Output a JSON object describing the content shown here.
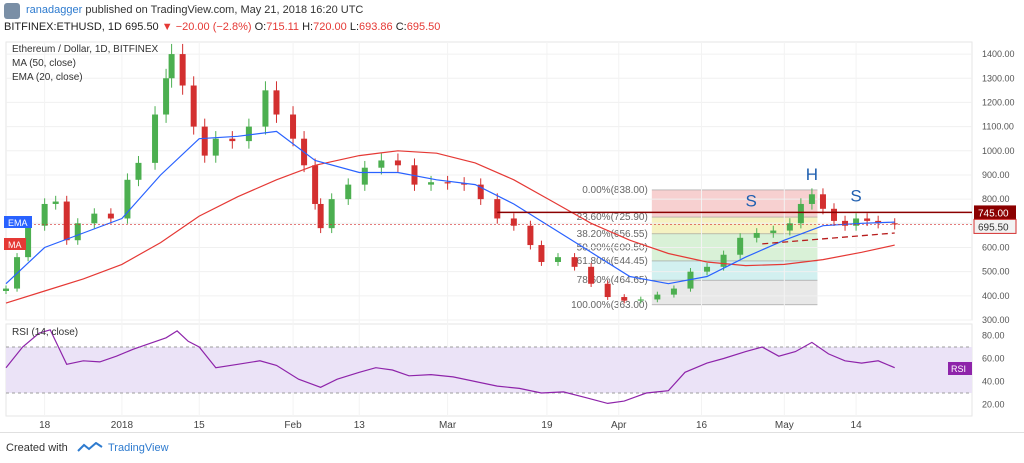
{
  "header": {
    "user": "ranadagger",
    "published": "published on TradingView.com, May 21, 2018 16:20 UTC",
    "symbol": "BITFINEX:ETHUSD, 1D",
    "price": "695.50",
    "change": "▼ −20.00 (−2.8%)",
    "o_label": "O:",
    "o_val": "715.11",
    "h_label": "H:",
    "h_val": "720.00",
    "l_label": "L:",
    "l_val": "693.86",
    "c_label": "C:",
    "c_val": "695.50"
  },
  "legend": {
    "title": "Ethereum / Dollar, 1D, BITFINEX",
    "ma": "MA (50, close)",
    "ema": "EMA (20, close)",
    "rsi": "RSI (14, close)"
  },
  "markers": {
    "ema": "EMA",
    "ma": "MA",
    "rsi": "RSI"
  },
  "footer": {
    "created": "Created with",
    "brand": "TradingView"
  },
  "colors": {
    "up": "#4caf50",
    "down": "#d32f2f",
    "ma": "#e53935",
    "ema": "#2962ff",
    "rsi": "#8e24aa",
    "rsi_band": "#ebe3f7",
    "resistance": "#8b0000",
    "fib_red": "#f5c4c4",
    "fib_yellow": "#f2efb3",
    "fib_green": "#cfeecd",
    "fib_teal": "#c7ecec",
    "fib_grey": "#e2e2e2",
    "fib_blue": "#c8d0ee"
  },
  "chart_data": [
    {
      "type": "candlestick",
      "title": "Ethereum / Dollar, 1D, BITFINEX",
      "ylim": [
        300,
        1450
      ],
      "y_ticks": [
        300,
        400,
        500,
        600,
        700,
        800,
        900,
        1000,
        1100,
        1200,
        1300,
        1400
      ],
      "x_ticks": [
        "18",
        "2018",
        "15",
        "Feb",
        "13",
        "Mar",
        "19",
        "Apr",
        "16",
        "May",
        "14"
      ],
      "price_labels": {
        "resistance": "745.00",
        "last": "695.50",
        "resistance_value": 745,
        "last_value": 695.5
      },
      "series": [
        {
          "name": "Ethereum / Dollar",
          "ohlc_summary": {
            "open": 715.11,
            "high": 720.0,
            "low": 693.86,
            "close": 695.5
          },
          "close_path": [
            {
              "x": "Dec 11",
              "y": 430
            },
            {
              "x": "Dec 13",
              "y": 560
            },
            {
              "x": "Dec 15",
              "y": 690
            },
            {
              "x": "Dec 18",
              "y": 780
            },
            {
              "x": "Dec 20",
              "y": 790
            },
            {
              "x": "Dec 22",
              "y": 630
            },
            {
              "x": "Dec 24",
              "y": 700
            },
            {
              "x": "Dec 27",
              "y": 740
            },
            {
              "x": "Dec 30",
              "y": 720
            },
            {
              "x": "Jan 2",
              "y": 880
            },
            {
              "x": "Jan 4",
              "y": 950
            },
            {
              "x": "Jan 7",
              "y": 1150
            },
            {
              "x": "Jan 9",
              "y": 1300
            },
            {
              "x": "Jan 10",
              "y": 1400
            },
            {
              "x": "Jan 12",
              "y": 1270
            },
            {
              "x": "Jan 14",
              "y": 1100
            },
            {
              "x": "Jan 16",
              "y": 980
            },
            {
              "x": "Jan 18",
              "y": 1050
            },
            {
              "x": "Jan 21",
              "y": 1040
            },
            {
              "x": "Jan 24",
              "y": 1100
            },
            {
              "x": "Jan 27",
              "y": 1250
            },
            {
              "x": "Jan 29",
              "y": 1150
            },
            {
              "x": "Feb 1",
              "y": 1050
            },
            {
              "x": "Feb 3",
              "y": 940
            },
            {
              "x": "Feb 5",
              "y": 780
            },
            {
              "x": "Feb 6",
              "y": 680
            },
            {
              "x": "Feb 8",
              "y": 800
            },
            {
              "x": "Feb 11",
              "y": 860
            },
            {
              "x": "Feb 14",
              "y": 930
            },
            {
              "x": "Feb 17",
              "y": 960
            },
            {
              "x": "Feb 20",
              "y": 940
            },
            {
              "x": "Feb 23",
              "y": 860
            },
            {
              "x": "Feb 26",
              "y": 870
            },
            {
              "x": "Mar 1",
              "y": 865
            },
            {
              "x": "Mar 4",
              "y": 860
            },
            {
              "x": "Mar 7",
              "y": 800
            },
            {
              "x": "Mar 10",
              "y": 720
            },
            {
              "x": "Mar 13",
              "y": 690
            },
            {
              "x": "Mar 16",
              "y": 610
            },
            {
              "x": "Mar 18",
              "y": 540
            },
            {
              "x": "Mar 21",
              "y": 560
            },
            {
              "x": "Mar 24",
              "y": 520
            },
            {
              "x": "Mar 27",
              "y": 450
            },
            {
              "x": "Mar 30",
              "y": 395
            },
            {
              "x": "Apr 2",
              "y": 380
            },
            {
              "x": "Apr 5",
              "y": 385
            },
            {
              "x": "Apr 8",
              "y": 405
            },
            {
              "x": "Apr 11",
              "y": 430
            },
            {
              "x": "Apr 14",
              "y": 500
            },
            {
              "x": "Apr 17",
              "y": 520
            },
            {
              "x": "Apr 20",
              "y": 570
            },
            {
              "x": "Apr 23",
              "y": 640
            },
            {
              "x": "Apr 26",
              "y": 660
            },
            {
              "x": "Apr 29",
              "y": 670
            },
            {
              "x": "May 2",
              "y": 700
            },
            {
              "x": "May 4",
              "y": 780
            },
            {
              "x": "May 6",
              "y": 820
            },
            {
              "x": "May 8",
              "y": 760
            },
            {
              "x": "May 10",
              "y": 710
            },
            {
              "x": "May 12",
              "y": 690
            },
            {
              "x": "May 14",
              "y": 720
            },
            {
              "x": "May 16",
              "y": 710
            },
            {
              "x": "May 18",
              "y": 700
            },
            {
              "x": "May 21",
              "y": 695.5
            }
          ]
        },
        {
          "name": "MA (50, close)",
          "points": [
            {
              "x": "Dec 11",
              "y": 370
            },
            {
              "x": "Dec 18",
              "y": 420
            },
            {
              "x": "Dec 25",
              "y": 470
            },
            {
              "x": "Jan 1",
              "y": 530
            },
            {
              "x": "Jan 8",
              "y": 620
            },
            {
              "x": "Jan 15",
              "y": 730
            },
            {
              "x": "Jan 22",
              "y": 810
            },
            {
              "x": "Jan 29",
              "y": 880
            },
            {
              "x": "Feb 5",
              "y": 940
            },
            {
              "x": "Feb 13",
              "y": 980
            },
            {
              "x": "Feb 20",
              "y": 1000
            },
            {
              "x": "Feb 27",
              "y": 990
            },
            {
              "x": "Mar 6",
              "y": 950
            },
            {
              "x": "Mar 13",
              "y": 880
            },
            {
              "x": "Mar 20",
              "y": 790
            },
            {
              "x": "Mar 27",
              "y": 700
            },
            {
              "x": "Apr 3",
              "y": 630
            },
            {
              "x": "Apr 10",
              "y": 575
            },
            {
              "x": "Apr 17",
              "y": 540
            },
            {
              "x": "Apr 24",
              "y": 525
            },
            {
              "x": "May 1",
              "y": 530
            },
            {
              "x": "May 8",
              "y": 550
            },
            {
              "x": "May 15",
              "y": 580
            },
            {
              "x": "May 21",
              "y": 610
            }
          ]
        },
        {
          "name": "EMA (20, close)",
          "points": [
            {
              "x": "Dec 11",
              "y": 450
            },
            {
              "x": "Dec 18",
              "y": 600
            },
            {
              "x": "Dec 25",
              "y": 660
            },
            {
              "x": "Jan 1",
              "y": 720
            },
            {
              "x": "Jan 8",
              "y": 900
            },
            {
              "x": "Jan 15",
              "y": 1050
            },
            {
              "x": "Jan 22",
              "y": 1060
            },
            {
              "x": "Jan 29",
              "y": 1080
            },
            {
              "x": "Feb 5",
              "y": 960
            },
            {
              "x": "Feb 13",
              "y": 910
            },
            {
              "x": "Feb 20",
              "y": 910
            },
            {
              "x": "Feb 27",
              "y": 880
            },
            {
              "x": "Mar 6",
              "y": 860
            },
            {
              "x": "Mar 13",
              "y": 780
            },
            {
              "x": "Mar 20",
              "y": 680
            },
            {
              "x": "Mar 27",
              "y": 580
            },
            {
              "x": "Apr 3",
              "y": 480
            },
            {
              "x": "Apr 10",
              "y": 450
            },
            {
              "x": "Apr 17",
              "y": 480
            },
            {
              "x": "Apr 24",
              "y": 560
            },
            {
              "x": "May 1",
              "y": 630
            },
            {
              "x": "May 8",
              "y": 690
            },
            {
              "x": "May 15",
              "y": 700
            },
            {
              "x": "May 21",
              "y": 705
            }
          ]
        }
      ],
      "fibonacci": {
        "levels": [
          {
            "label": "0.00%(838.00)",
            "value": 838.0
          },
          {
            "label": "23.60%(725.90)",
            "value": 725.9
          },
          {
            "label": "38.20%(656.55)",
            "value": 656.55
          },
          {
            "label": "50.00%(600.50)",
            "value": 600.5
          },
          {
            "label": "61.80%(544.45)",
            "value": 544.45
          },
          {
            "label": "78.60%(464.65)",
            "value": 464.65
          },
          {
            "label": "100.00%(363.00)",
            "value": 363.0
          }
        ]
      },
      "annotations": [
        {
          "text": "S",
          "x": "Apr 25",
          "y": 770
        },
        {
          "text": "H",
          "x": "May 6",
          "y": 880
        },
        {
          "text": "S",
          "x": "May 14",
          "y": 790
        }
      ]
    },
    {
      "type": "line",
      "title": "RSI (14, close)",
      "ylim": [
        10,
        90
      ],
      "y_ticks": [
        20,
        40,
        60,
        80
      ],
      "band": [
        30,
        70
      ],
      "series": [
        {
          "name": "RSI (14, close)",
          "points": [
            {
              "x": "Dec 11",
              "y": 52
            },
            {
              "x": "Dec 14",
              "y": 70
            },
            {
              "x": "Dec 17",
              "y": 82
            },
            {
              "x": "Dec 19",
              "y": 85
            },
            {
              "x": "Dec 22",
              "y": 55
            },
            {
              "x": "Dec 25",
              "y": 58
            },
            {
              "x": "Dec 28",
              "y": 57
            },
            {
              "x": "Dec 31",
              "y": 62
            },
            {
              "x": "Jan 3",
              "y": 68
            },
            {
              "x": "Jan 6",
              "y": 73
            },
            {
              "x": "Jan 9",
              "y": 78
            },
            {
              "x": "Jan 11",
              "y": 84
            },
            {
              "x": "Jan 13",
              "y": 75
            },
            {
              "x": "Jan 15",
              "y": 70
            },
            {
              "x": "Jan 18",
              "y": 52
            },
            {
              "x": "Jan 22",
              "y": 55
            },
            {
              "x": "Jan 26",
              "y": 58
            },
            {
              "x": "Jan 29",
              "y": 54
            },
            {
              "x": "Feb 2",
              "y": 42
            },
            {
              "x": "Feb 6",
              "y": 35
            },
            {
              "x": "Feb 9",
              "y": 42
            },
            {
              "x": "Feb 13",
              "y": 48
            },
            {
              "x": "Feb 16",
              "y": 52
            },
            {
              "x": "Feb 19",
              "y": 50
            },
            {
              "x": "Feb 22",
              "y": 45
            },
            {
              "x": "Feb 26",
              "y": 46
            },
            {
              "x": "Mar 2",
              "y": 44
            },
            {
              "x": "Mar 6",
              "y": 40
            },
            {
              "x": "Mar 10",
              "y": 36
            },
            {
              "x": "Mar 14",
              "y": 34
            },
            {
              "x": "Mar 18",
              "y": 30
            },
            {
              "x": "Mar 22",
              "y": 31
            },
            {
              "x": "Mar 26",
              "y": 26
            },
            {
              "x": "Mar 30",
              "y": 21
            },
            {
              "x": "Apr 2",
              "y": 23
            },
            {
              "x": "Apr 6",
              "y": 30
            },
            {
              "x": "Apr 10",
              "y": 32
            },
            {
              "x": "Apr 13",
              "y": 48
            },
            {
              "x": "Apr 17",
              "y": 56
            },
            {
              "x": "Apr 20",
              "y": 60
            },
            {
              "x": "Apr 24",
              "y": 66
            },
            {
              "x": "Apr 27",
              "y": 70
            },
            {
              "x": "Apr 30",
              "y": 62
            },
            {
              "x": "May 3",
              "y": 66
            },
            {
              "x": "May 6",
              "y": 74
            },
            {
              "x": "May 9",
              "y": 64
            },
            {
              "x": "May 12",
              "y": 58
            },
            {
              "x": "May 15",
              "y": 56
            },
            {
              "x": "May 18",
              "y": 58
            },
            {
              "x": "May 21",
              "y": 52
            }
          ]
        }
      ]
    }
  ]
}
